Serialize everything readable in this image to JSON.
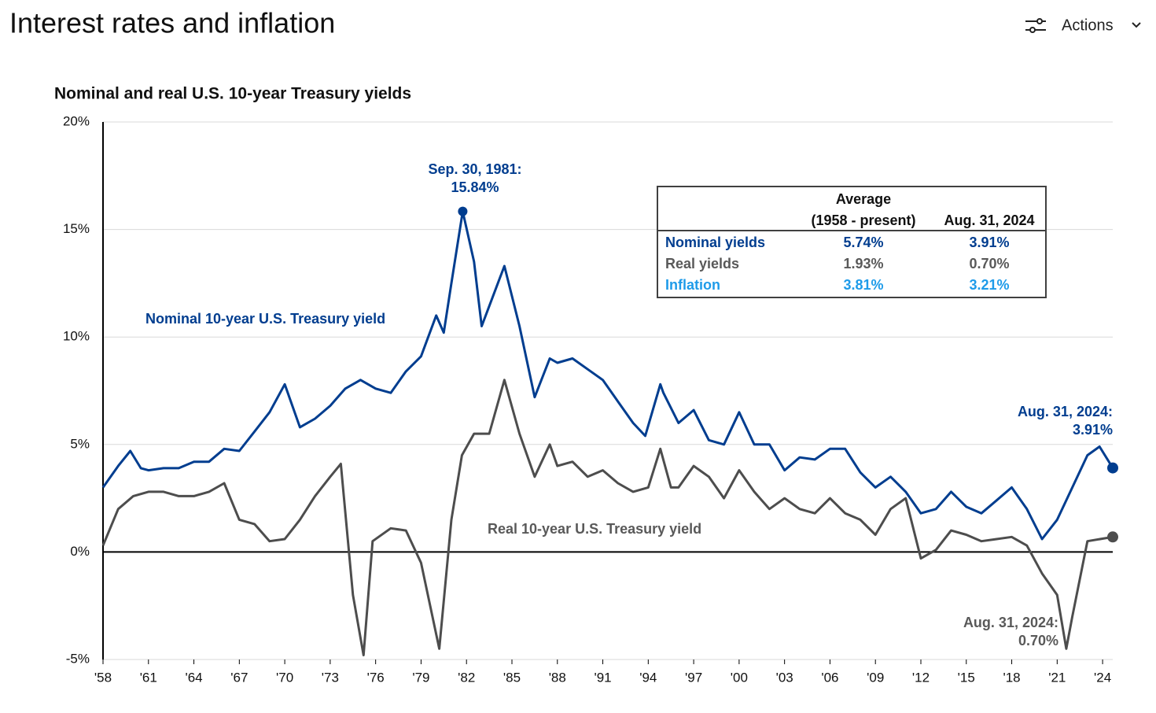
{
  "header": {
    "title": "Interest rates and inflation",
    "actions": "Actions"
  },
  "chart_data": {
    "type": "line",
    "title": "Nominal and real U.S. 10-year Treasury yields",
    "xlim": [
      1958,
      2024.67
    ],
    "ylim": [
      -5,
      20
    ],
    "yticks": [
      {
        "value": -5,
        "label": "-5%"
      },
      {
        "value": 0,
        "label": "0%"
      },
      {
        "value": 5,
        "label": "5%"
      },
      {
        "value": 10,
        "label": "10%"
      },
      {
        "value": 15,
        "label": "15%"
      },
      {
        "value": 20,
        "label": "20%"
      }
    ],
    "xticks": [
      {
        "value": 1958,
        "label": "'58"
      },
      {
        "value": 1961,
        "label": "'61"
      },
      {
        "value": 1964,
        "label": "'64"
      },
      {
        "value": 1967,
        "label": "'67"
      },
      {
        "value": 1970,
        "label": "'70"
      },
      {
        "value": 1973,
        "label": "'73"
      },
      {
        "value": 1976,
        "label": "'76"
      },
      {
        "value": 1979,
        "label": "'79"
      },
      {
        "value": 1982,
        "label": "'82"
      },
      {
        "value": 1985,
        "label": "'85"
      },
      {
        "value": 1988,
        "label": "'88"
      },
      {
        "value": 1991,
        "label": "'91"
      },
      {
        "value": 1994,
        "label": "'94"
      },
      {
        "value": 1997,
        "label": "'97"
      },
      {
        "value": 2000,
        "label": "'00"
      },
      {
        "value": 2003,
        "label": "'03"
      },
      {
        "value": 2006,
        "label": "'06"
      },
      {
        "value": 2009,
        "label": "'09"
      },
      {
        "value": 2012,
        "label": "'12"
      },
      {
        "value": 2015,
        "label": "'15"
      },
      {
        "value": 2018,
        "label": "'18"
      },
      {
        "value": 2021,
        "label": "'21"
      },
      {
        "value": 2024,
        "label": "'24"
      }
    ],
    "grid": true,
    "series": [
      {
        "name": "Nominal 10-year U.S. Treasury yield",
        "color": "#003d8f",
        "x": [
          1958,
          1959,
          1959.8,
          1960.5,
          1961,
          1962,
          1963,
          1964,
          1965,
          1966,
          1967,
          1968,
          1969,
          1970,
          1971,
          1972,
          1973,
          1974,
          1975,
          1976,
          1977,
          1978,
          1979,
          1980,
          1980.5,
          1981,
          1981.75,
          1982.5,
          1983,
          1984.5,
          1985.5,
          1986.5,
          1987.5,
          1988,
          1989,
          1990,
          1991,
          1992,
          1993,
          1993.8,
          1994.8,
          1995,
          1996,
          1997,
          1998,
          1999,
          2000,
          2001,
          2002,
          2003,
          2004,
          2005,
          2006,
          2007,
          2008,
          2009,
          2010,
          2011,
          2012,
          2013,
          2014,
          2015,
          2016,
          2017,
          2018,
          2019,
          2020,
          2021,
          2022,
          2023,
          2023.8,
          2024.67
        ],
        "values": [
          3.0,
          4.0,
          4.7,
          3.9,
          3.8,
          3.9,
          3.9,
          4.2,
          4.2,
          4.8,
          4.7,
          5.6,
          6.5,
          7.8,
          5.8,
          6.2,
          6.8,
          7.6,
          8.0,
          7.6,
          7.4,
          8.4,
          9.1,
          11.0,
          10.2,
          12.5,
          15.84,
          13.5,
          10.5,
          13.3,
          10.5,
          7.2,
          9.0,
          8.8,
          9.0,
          8.5,
          8.0,
          7.0,
          6.0,
          5.4,
          7.8,
          7.4,
          6.0,
          6.6,
          5.2,
          5.0,
          6.5,
          5.0,
          5.0,
          3.8,
          4.4,
          4.3,
          4.8,
          4.8,
          3.7,
          3.0,
          3.5,
          2.8,
          1.8,
          2.0,
          2.8,
          2.1,
          1.8,
          2.4,
          3.0,
          2.0,
          0.6,
          1.5,
          3.0,
          4.5,
          4.9,
          3.91
        ]
      },
      {
        "name": "Real 10-year U.S. Treasury yield",
        "color": "#4d4d4d",
        "x": [
          1958,
          1959,
          1960,
          1961,
          1962,
          1963,
          1964,
          1965,
          1966,
          1967,
          1968,
          1969,
          1970,
          1971,
          1972,
          1973,
          1973.7,
          1974.5,
          1975.2,
          1975.8,
          1977,
          1978,
          1979,
          1980.2,
          1981,
          1981.7,
          1982.5,
          1983.5,
          1984.5,
          1985.5,
          1986.5,
          1987.5,
          1988,
          1989,
          1990,
          1991,
          1992,
          1993,
          1994,
          1994.8,
          1995.5,
          1996,
          1997,
          1998,
          1999,
          2000,
          2001,
          2002,
          2003,
          2004,
          2005,
          2006,
          2007,
          2008,
          2009,
          2010,
          2011,
          2012,
          2013,
          2014,
          2015,
          2016,
          2017,
          2018,
          2019,
          2020,
          2021,
          2021.6,
          2022,
          2023,
          2024.67
        ],
        "values": [
          0.3,
          2.0,
          2.6,
          2.8,
          2.8,
          2.6,
          2.6,
          2.8,
          3.2,
          1.5,
          1.3,
          0.5,
          0.6,
          1.5,
          2.6,
          3.5,
          4.1,
          -2.0,
          -4.8,
          0.5,
          1.1,
          1.0,
          -0.5,
          -4.5,
          1.5,
          4.5,
          5.5,
          5.5,
          8.0,
          5.5,
          3.5,
          5.0,
          4.0,
          4.2,
          3.5,
          3.8,
          3.2,
          2.8,
          3.0,
          4.8,
          3.0,
          3.0,
          4.0,
          3.5,
          2.5,
          3.8,
          2.8,
          2.0,
          2.5,
          2.0,
          1.8,
          2.5,
          1.8,
          1.5,
          0.8,
          2.0,
          2.5,
          -0.3,
          0.1,
          1.0,
          0.8,
          0.5,
          0.6,
          0.7,
          0.3,
          -1.0,
          -2.0,
          -4.5,
          -3.0,
          0.5,
          0.7
        ]
      }
    ],
    "annotations": [
      "Sep. 30, 1981:",
      "15.84%",
      "Aug. 31, 2024:",
      "3.91%",
      "Aug. 31, 2024:",
      "0.70%"
    ],
    "table": {
      "header": [
        "Average",
        "(1958 - present)",
        "Aug. 31, 2024"
      ],
      "rows": [
        [
          "Nominal yields",
          "5.74%",
          "3.91%"
        ],
        [
          "Real yields",
          "1.93%",
          "0.70%"
        ],
        [
          "Inflation",
          "3.81%",
          "3.21%"
        ]
      ]
    }
  }
}
